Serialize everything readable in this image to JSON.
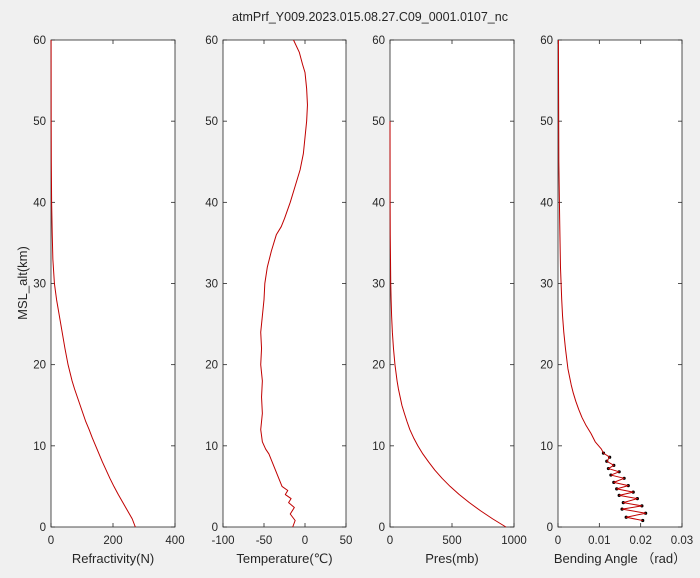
{
  "figure": {
    "title": "atmPrf_Y009.2023.015.08.27.C09_0001.0107_nc",
    "ylabel": "MSL_alt(km)",
    "background": "#f0f0f0",
    "axes_background": "#ffffff",
    "line_color": "#c00000",
    "marker_color": "#000000"
  },
  "chart_data": [
    {
      "type": "line",
      "xlabel": "Refractivity(N)",
      "ylabel": "MSL_alt(km)",
      "xlim": [
        0,
        400
      ],
      "ylim": [
        0,
        60
      ],
      "xticks": [
        "0",
        "200",
        "400"
      ],
      "yticks": [
        "0",
        "10",
        "20",
        "30",
        "40",
        "50",
        "60"
      ],
      "grid": false,
      "series": [
        {
          "x": [
            272,
            262,
            247,
            232,
            217,
            203,
            190,
            178,
            166,
            155,
            144,
            133,
            123,
            112,
            103,
            94,
            85,
            76,
            68,
            55,
            45,
            36,
            27,
            18,
            11,
            6,
            4,
            2,
            1,
            0.6,
            0.3
          ],
          "y": [
            0,
            1,
            2,
            3,
            4,
            5,
            6,
            7,
            8,
            9,
            10,
            11,
            12,
            13,
            14,
            15,
            16,
            17,
            18,
            20,
            22,
            24,
            26,
            28,
            30,
            33,
            36,
            40,
            45,
            50,
            60
          ]
        }
      ]
    },
    {
      "type": "line",
      "xlabel": "Temperature(℃)",
      "ylabel": "",
      "xlim": [
        -100,
        50
      ],
      "ylim": [
        0,
        60
      ],
      "xticks": [
        "-100",
        "-50",
        "0",
        "50"
      ],
      "yticks": [
        "0",
        "10",
        "20",
        "30",
        "40",
        "50",
        "60"
      ],
      "grid": false,
      "series": [
        {
          "x": [
            -15,
            -12,
            -18,
            -13,
            -20,
            -17,
            -24,
            -21,
            -28,
            -32,
            -36,
            -40,
            -44,
            -48,
            -52,
            -54,
            -52,
            -53,
            -52,
            -54,
            -53,
            -54,
            -52,
            -50,
            -49,
            -46,
            -41,
            -35,
            -29,
            -25,
            -18,
            -12,
            -6,
            -2,
            0,
            2,
            3,
            2,
            0,
            -3,
            -7,
            -14
          ],
          "y": [
            0,
            0.8,
            1.6,
            2.4,
            3.0,
            3.5,
            4.0,
            4.5,
            5.0,
            6.0,
            7.0,
            8.0,
            9.0,
            9.6,
            10.5,
            12,
            14,
            16,
            18,
            20,
            22,
            24,
            26,
            28,
            30,
            32,
            34,
            36,
            37,
            38,
            40,
            42,
            44,
            46,
            48,
            50,
            52,
            54,
            56,
            57,
            58.5,
            60
          ]
        }
      ]
    },
    {
      "type": "line",
      "xlabel": "Pres(mb)",
      "ylabel": "",
      "xlim": [
        0,
        1000
      ],
      "ylim": [
        0,
        60
      ],
      "xticks": [
        "0",
        "500",
        "1000"
      ],
      "yticks": [
        "0",
        "10",
        "20",
        "30",
        "40",
        "50",
        "60"
      ],
      "grid": false,
      "series": [
        {
          "x": [
            935,
            828,
            730,
            640,
            558,
            485,
            420,
            362,
            312,
            265,
            225,
            190,
            160,
            137,
            116,
            96,
            82,
            68,
            57,
            40,
            28,
            19,
            13,
            9,
            6,
            4,
            2,
            1,
            0.5,
            0.2
          ],
          "y": [
            0,
            1,
            2,
            3,
            4,
            5,
            6,
            7,
            8,
            9,
            10,
            11,
            12,
            13,
            14,
            15,
            16,
            17,
            18,
            20,
            22,
            24,
            26,
            28,
            30,
            33,
            36,
            40,
            45,
            50
          ]
        }
      ]
    },
    {
      "type": "line",
      "xlabel": "Bending Angle （rad）",
      "ylabel": "",
      "xlim": [
        0,
        0.03
      ],
      "ylim": [
        0,
        60
      ],
      "xticks": [
        "0",
        "0.01",
        "0.02",
        "0.03"
      ],
      "yticks": [
        "0",
        "10",
        "20",
        "30",
        "40",
        "50",
        "60"
      ],
      "grid": false,
      "series": [
        {
          "x": [
            0.0205,
            0.0165,
            0.0212,
            0.0155,
            0.0203,
            0.0158,
            0.0192,
            0.0148,
            0.0182,
            0.0142,
            0.017,
            0.0135,
            0.016,
            0.0128,
            0.0148,
            0.0122,
            0.0135,
            0.0118,
            0.0125,
            0.011,
            0.0105,
            0.009,
            0.008,
            0.0068,
            0.0058,
            0.005,
            0.0043,
            0.0037,
            0.0032,
            0.0024,
            0.0018,
            0.0014,
            0.0011,
            0.0009,
            0.0006,
            0.0004,
            0.0002,
            0.0001
          ],
          "y": [
            0.8,
            1.2,
            1.7,
            2.2,
            2.6,
            3.0,
            3.5,
            3.9,
            4.3,
            4.7,
            5.1,
            5.5,
            6.0,
            6.4,
            6.8,
            7.2,
            7.6,
            8.1,
            8.6,
            9.1,
            9.6,
            10.5,
            11.5,
            12.5,
            13.5,
            14.5,
            15.5,
            16.5,
            17.5,
            19.5,
            22,
            24,
            26,
            28,
            32,
            38,
            45,
            60
          ]
        }
      ]
    }
  ]
}
